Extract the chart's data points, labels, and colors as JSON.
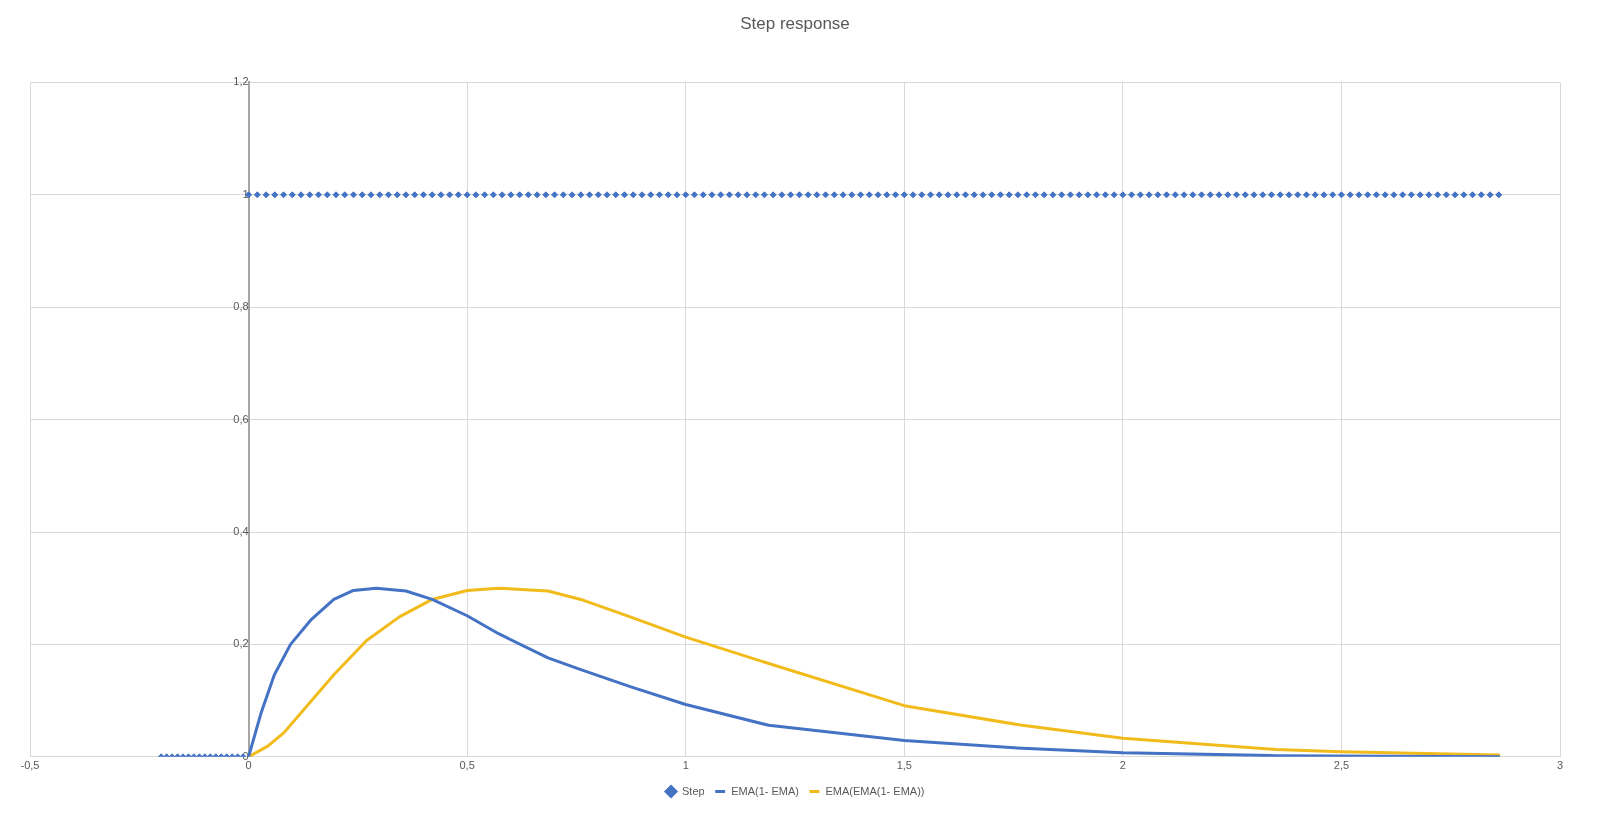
{
  "chart_data": {
    "type": "line",
    "title": "Step response",
    "xlim": [
      -0.5,
      3
    ],
    "xticks": [
      {
        "value": -0.5,
        "label": "-0,5"
      },
      0,
      {
        "value": 0.5,
        "label": "0,5"
      },
      1,
      {
        "value": 1.5,
        "label": "1,5"
      },
      2,
      {
        "value": 2.5,
        "label": "2,5"
      },
      3
    ],
    "ylim": [
      0,
      1.2
    ],
    "yticks": [
      0,
      {
        "value": 0.2,
        "label": "0,2"
      },
      {
        "value": 0.4,
        "label": "0,4"
      },
      {
        "value": 0.6,
        "label": "0,6"
      },
      {
        "value": 0.8,
        "label": "0,8"
      },
      1,
      {
        "value": 1.2,
        "label": "1,2"
      }
    ],
    "grid": true,
    "legend": "bottom",
    "series": [
      {
        "name": "Step",
        "type": "scatter",
        "marker": "diamond",
        "color": "#4472c4",
        "x": [
          -0.2,
          -0.1875,
          -0.175,
          -0.1625,
          -0.15,
          -0.1375,
          -0.125,
          -0.1125,
          -0.1,
          -0.0875,
          -0.075,
          -0.0625,
          -0.05,
          -0.0375,
          -0.025,
          -0.0125,
          0,
          0.02,
          0.04,
          0.06,
          0.08,
          0.1,
          0.12,
          0.14,
          0.16,
          0.18,
          0.2,
          0.22,
          0.24,
          0.26,
          0.28,
          0.3,
          0.32,
          0.34,
          0.36,
          0.38,
          0.4,
          0.42,
          0.44,
          0.46,
          0.48,
          0.5,
          0.52,
          0.54,
          0.56,
          0.58,
          0.6,
          0.62,
          0.64,
          0.66,
          0.68,
          0.7,
          0.72,
          0.74,
          0.76,
          0.78,
          0.8,
          0.82,
          0.84,
          0.86,
          0.88,
          0.9,
          0.92,
          0.94,
          0.96,
          0.98,
          1,
          1.02,
          1.04,
          1.06,
          1.08,
          1.1,
          1.12,
          1.14,
          1.16,
          1.18,
          1.2,
          1.22,
          1.24,
          1.26,
          1.28,
          1.3,
          1.32,
          1.34,
          1.36,
          1.38,
          1.4,
          1.42,
          1.44,
          1.46,
          1.48,
          1.5,
          1.52,
          1.54,
          1.56,
          1.58,
          1.6,
          1.62,
          1.64,
          1.66,
          1.68,
          1.7,
          1.72,
          1.74,
          1.76,
          1.78,
          1.8,
          1.82,
          1.84,
          1.86,
          1.88,
          1.9,
          1.92,
          1.94,
          1.96,
          1.98,
          2,
          2.02,
          2.04,
          2.06,
          2.08,
          2.1,
          2.12,
          2.14,
          2.16,
          2.18,
          2.2,
          2.22,
          2.24,
          2.26,
          2.28,
          2.3,
          2.32,
          2.34,
          2.36,
          2.38,
          2.4,
          2.42,
          2.44,
          2.46,
          2.48,
          2.5,
          2.52,
          2.54,
          2.56,
          2.58,
          2.6,
          2.62,
          2.64,
          2.66,
          2.68,
          2.7,
          2.72,
          2.74,
          2.76,
          2.78,
          2.8,
          2.82,
          2.84,
          2.86
        ],
        "values": [
          0,
          0,
          0,
          0,
          0,
          0,
          0,
          0,
          0,
          0,
          0,
          0,
          0,
          0,
          0,
          0,
          1,
          1,
          1,
          1,
          1,
          1,
          1,
          1,
          1,
          1,
          1,
          1,
          1,
          1,
          1,
          1,
          1,
          1,
          1,
          1,
          1,
          1,
          1,
          1,
          1,
          1,
          1,
          1,
          1,
          1,
          1,
          1,
          1,
          1,
          1,
          1,
          1,
          1,
          1,
          1,
          1,
          1,
          1,
          1,
          1,
          1,
          1,
          1,
          1,
          1,
          1,
          1,
          1,
          1,
          1,
          1,
          1,
          1,
          1,
          1,
          1,
          1,
          1,
          1,
          1,
          1,
          1,
          1,
          1,
          1,
          1,
          1,
          1,
          1,
          1,
          1,
          1,
          1,
          1,
          1,
          1,
          1,
          1,
          1,
          1,
          1,
          1,
          1,
          1,
          1,
          1,
          1,
          1,
          1,
          1,
          1,
          1,
          1,
          1,
          1,
          1,
          1,
          1,
          1,
          1,
          1,
          1,
          1,
          1,
          1,
          1,
          1,
          1,
          1,
          1,
          1,
          1,
          1,
          1,
          1,
          1,
          1,
          1,
          1,
          1,
          1,
          1,
          1,
          1,
          1,
          1,
          1,
          1,
          1,
          1,
          1,
          1,
          1,
          1,
          1,
          1,
          1,
          1,
          1
        ]
      },
      {
        "name": "EMA(1- EMA)",
        "marker": "none",
        "color": "#4472c4",
        "x": [
          0,
          0.029,
          0.059,
          0.096,
          0.142,
          0.195,
          0.24,
          0.292,
          0.36,
          0.42,
          0.5,
          0.572,
          0.685,
          0.76,
          0.873,
          1,
          1.19,
          1.5,
          1.77,
          2,
          2.35,
          2.86
        ],
        "values": [
          0,
          0.079,
          0.146,
          0.2,
          0.243,
          0.28,
          0.296,
          0.3,
          0.295,
          0.28,
          0.251,
          0.219,
          0.176,
          0.155,
          0.125,
          0.093,
          0.056,
          0.029,
          0.015,
          0.007,
          0.002,
          0
        ]
      },
      {
        "name": "EMA(EMA(1- EMA))",
        "marker": "none",
        "color": "#f2bb1c",
        "x": [
          0,
          0.044,
          0.081,
          0.134,
          0.195,
          0.27,
          0.345,
          0.42,
          0.5,
          0.572,
          0.685,
          0.76,
          0.873,
          1,
          1.19,
          1.5,
          1.77,
          2,
          2.35,
          2.5,
          2.86
        ],
        "values": [
          0,
          0.019,
          0.043,
          0.091,
          0.146,
          0.207,
          0.249,
          0.28,
          0.296,
          0.3,
          0.295,
          0.28,
          0.249,
          0.213,
          0.166,
          0.091,
          0.056,
          0.033,
          0.013,
          0.009,
          0.003
        ]
      }
    ]
  }
}
